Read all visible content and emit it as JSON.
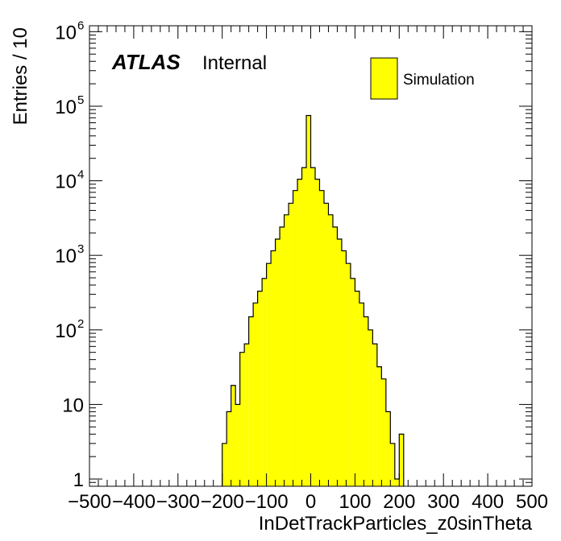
{
  "chart_data": {
    "type": "histogram",
    "x_axis": {
      "label": "InDetTrackParticles_z0sinTheta",
      "range": [
        -500,
        500
      ],
      "ticks": [
        -500,
        -400,
        -300,
        -200,
        -100,
        0,
        100,
        200,
        300,
        400,
        500
      ],
      "tick_labels": [
        "−500",
        "−400",
        "−300",
        "−200",
        "−100",
        "0",
        "100",
        "200",
        "300",
        "400",
        "500"
      ]
    },
    "y_axis": {
      "label": "Entries / 10",
      "scale": "log",
      "range": [
        0.8,
        1200000
      ],
      "ticks": [
        1,
        10,
        100,
        1000,
        10000,
        100000,
        1000000
      ],
      "tick_labels": [
        {
          "base": "1",
          "exp": ""
        },
        {
          "base": "10",
          "exp": ""
        },
        {
          "base": "10",
          "exp": "2"
        },
        {
          "base": "10",
          "exp": "3"
        },
        {
          "base": "10",
          "exp": "4"
        },
        {
          "base": "10",
          "exp": "5"
        },
        {
          "base": "10",
          "exp": "6"
        }
      ]
    },
    "fill_color": "#ffff00",
    "line_color": "#000000",
    "series": [
      {
        "name": "Simulation",
        "bins": [
          {
            "x0": -200,
            "x1": -190,
            "value": 3
          },
          {
            "x0": -190,
            "x1": -180,
            "value": 8
          },
          {
            "x0": -180,
            "x1": -170,
            "value": 18
          },
          {
            "x0": -170,
            "x1": -160,
            "value": 10
          },
          {
            "x0": -160,
            "x1": -150,
            "value": 50
          },
          {
            "x0": -150,
            "x1": -140,
            "value": 65
          },
          {
            "x0": -140,
            "x1": -130,
            "value": 150
          },
          {
            "x0": -130,
            "x1": -120,
            "value": 230
          },
          {
            "x0": -120,
            "x1": -110,
            "value": 330
          },
          {
            "x0": -110,
            "x1": -100,
            "value": 490
          },
          {
            "x0": -100,
            "x1": -90,
            "value": 780
          },
          {
            "x0": -90,
            "x1": -80,
            "value": 1150
          },
          {
            "x0": -80,
            "x1": -70,
            "value": 1650
          },
          {
            "x0": -70,
            "x1": -60,
            "value": 2400
          },
          {
            "x0": -60,
            "x1": -50,
            "value": 3500
          },
          {
            "x0": -50,
            "x1": -40,
            "value": 5000
          },
          {
            "x0": -40,
            "x1": -30,
            "value": 7400
          },
          {
            "x0": -30,
            "x1": -20,
            "value": 10500
          },
          {
            "x0": -20,
            "x1": -10,
            "value": 15000
          },
          {
            "x0": -10,
            "x1": 0,
            "value": 75000
          },
          {
            "x0": 0,
            "x1": 10,
            "value": 15000
          },
          {
            "x0": 10,
            "x1": 20,
            "value": 10500
          },
          {
            "x0": 20,
            "x1": 30,
            "value": 7400
          },
          {
            "x0": 30,
            "x1": 40,
            "value": 5000
          },
          {
            "x0": 40,
            "x1": 50,
            "value": 3500
          },
          {
            "x0": 50,
            "x1": 60,
            "value": 2400
          },
          {
            "x0": 60,
            "x1": 70,
            "value": 1650
          },
          {
            "x0": 70,
            "x1": 80,
            "value": 1150
          },
          {
            "x0": 80,
            "x1": 90,
            "value": 780
          },
          {
            "x0": 90,
            "x1": 100,
            "value": 490
          },
          {
            "x0": 100,
            "x1": 110,
            "value": 330
          },
          {
            "x0": 110,
            "x1": 120,
            "value": 230
          },
          {
            "x0": 120,
            "x1": 130,
            "value": 150
          },
          {
            "x0": 130,
            "x1": 140,
            "value": 100
          },
          {
            "x0": 140,
            "x1": 150,
            "value": 65
          },
          {
            "x0": 150,
            "x1": 160,
            "value": 32
          },
          {
            "x0": 160,
            "x1": 170,
            "value": 22
          },
          {
            "x0": 170,
            "x1": 180,
            "value": 8
          },
          {
            "x0": 180,
            "x1": 190,
            "value": 3
          },
          {
            "x0": 190,
            "x1": 200,
            "value": 1
          },
          {
            "x0": 200,
            "x1": 210,
            "value": 4
          }
        ]
      }
    ],
    "legend": {
      "position": "top-right",
      "entries": [
        "Simulation"
      ]
    },
    "annotation": {
      "bold_italic": "ATLAS",
      "normal": "Internal",
      "position": "top-left"
    }
  }
}
